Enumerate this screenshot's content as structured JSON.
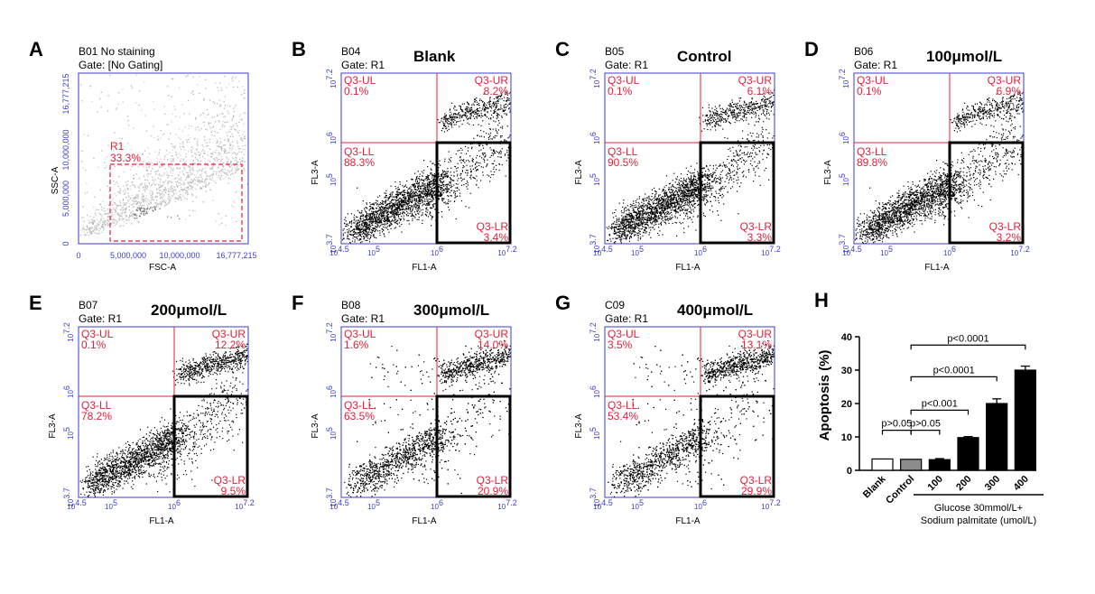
{
  "figure": {
    "panels": [
      {
        "letter": "A",
        "sample": "B01 No staining",
        "gate": "Gate: [No Gating]",
        "title": "",
        "xlabel": "FSC-A",
        "ylabel": "SSC-A",
        "xticks": [
          "0",
          "5,000,000",
          "10,000,000",
          "16,777,215"
        ],
        "yticks": [
          "0",
          "5,000,000",
          "10,000,000",
          "16,777,215"
        ],
        "region": {
          "name": "R1",
          "pct": "33.3%"
        }
      },
      {
        "letter": "B",
        "sample": "B04",
        "gate": "Gate: R1",
        "title": "Blank",
        "xlabel": "FL1-A",
        "ylabel": "FL3-A",
        "quadrants": {
          "ul": "0.1%",
          "ur": "8.2%",
          "ll": "88.3%",
          "lr": "3.4%"
        }
      },
      {
        "letter": "C",
        "sample": "B05",
        "gate": "Gate: R1",
        "title": "Control",
        "xlabel": "FL1-A",
        "ylabel": "FL3-A",
        "quadrants": {
          "ul": "0.1%",
          "ur": "6.1%",
          "ll": "90.5%",
          "lr": "3.3%"
        }
      },
      {
        "letter": "D",
        "sample": "B06",
        "gate": "Gate: R1",
        "title": "100μmol/L",
        "xlabel": "FL1-A",
        "ylabel": "FL3-A",
        "quadrants": {
          "ul": "0.1%",
          "ur": "6.9%",
          "ll": "89.8%",
          "lr": "3.2%"
        }
      },
      {
        "letter": "E",
        "sample": "B07",
        "gate": "Gate: R1",
        "title": "200μmol/L",
        "xlabel": "FL1-A",
        "ylabel": "FL3-A",
        "quadrants": {
          "ul": "0.1%",
          "ur": "12.2%",
          "ll": "78.2%",
          "lr": "9.5%"
        }
      },
      {
        "letter": "F",
        "sample": "B08",
        "gate": "Gate: R1",
        "title": "300μmol/L",
        "xlabel": "FL1-A",
        "ylabel": "FL3-A",
        "quadrants": {
          "ul": "1.6%",
          "ur": "14.0%",
          "ll": "63.5%",
          "lr": "20.9%"
        }
      },
      {
        "letter": "G",
        "sample": "C09",
        "gate": "Gate: R1",
        "title": "400μmol/L",
        "xlabel": "FL1-A",
        "ylabel": "FL3-A",
        "quadrants": {
          "ul": "3.5%",
          "ur": "13.1%",
          "ll": "53.4%",
          "lr": "29.9%"
        }
      }
    ],
    "quadrant_labels": {
      "ul": "Q3-UL",
      "ur": "Q3-UR",
      "ll": "Q3-LL",
      "lr": "Q3-LR"
    },
    "log_ticks": {
      "x": [
        "10^4.5",
        "10^5",
        "10^6",
        "10^7.2"
      ],
      "y": [
        "10^3.7",
        "10^5",
        "10^6",
        "10^7.2"
      ]
    },
    "colors": {
      "axis": "#3d3dcc",
      "gate": "#e0203c",
      "dots": "#000000",
      "density": "#9a9a9a"
    }
  },
  "chart_data": {
    "type": "bar",
    "letter": "H",
    "ylabel": "Apoptosis (%)",
    "ylim": [
      0,
      40
    ],
    "yticks": [
      "0",
      "10",
      "20",
      "30",
      "40"
    ],
    "categories": [
      "Blank",
      "Control",
      "100",
      "200",
      "300",
      "400"
    ],
    "values": [
      3.4,
      3.3,
      3.2,
      9.8,
      20.0,
      30.0
    ],
    "errors": [
      0,
      0,
      0.3,
      0.3,
      1.4,
      1.2
    ],
    "bar_colors": [
      "#ffffff",
      "#8c8c8c",
      "#000000",
      "#000000",
      "#000000",
      "#000000"
    ],
    "group_label_line1": "Glucose 30mmol/L+",
    "group_label_line2": "Sodium palmitate (umol/L)",
    "comparisons": [
      {
        "from": 0,
        "to": 1,
        "label": "p>0.05"
      },
      {
        "from": 1,
        "to": 2,
        "label": "p>0.05"
      },
      {
        "from": 1,
        "to": 3,
        "label": "p<0.001"
      },
      {
        "from": 1,
        "to": 4,
        "label": "p<0.0001"
      },
      {
        "from": 1,
        "to": 5,
        "label": "p<0.0001"
      }
    ]
  }
}
